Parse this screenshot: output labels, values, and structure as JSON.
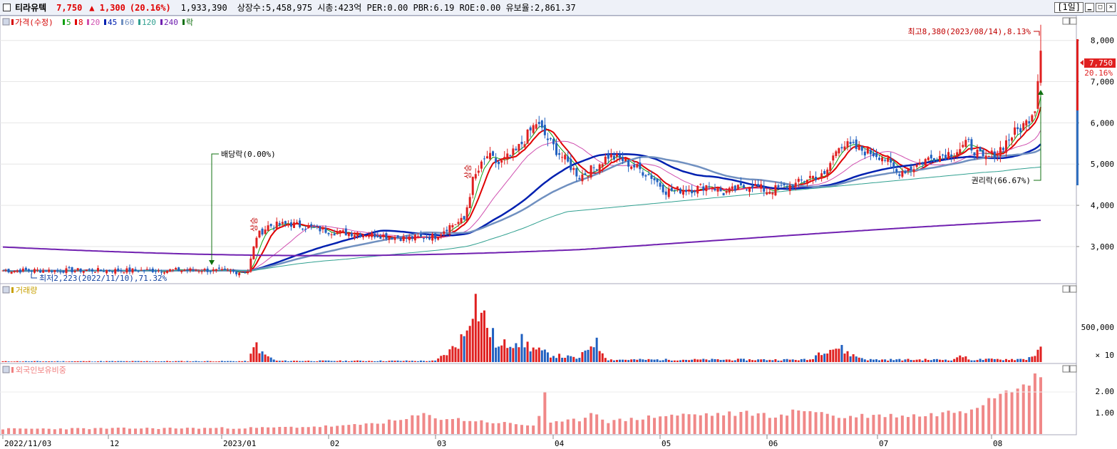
{
  "header": {
    "stock_name": "티라유텍",
    "price": "7,750",
    "change": "▲ 1,300",
    "change_pct": "(20.16%)",
    "volume": "1,933,390",
    "info": "상장수:5,458,975 시총:423억 PER:0.00 PBR:6.19 ROE:0.00 유보율:2,861.37",
    "period": "[1일]"
  },
  "price_panel": {
    "legend": [
      {
        "label": "가격(수정)",
        "color": "#d40000"
      },
      {
        "label": "5",
        "color": "#12a012"
      },
      {
        "label": "8",
        "color": "#e00000"
      },
      {
        "label": "20",
        "color": "#d050b0"
      },
      {
        "label": "45",
        "color": "#0020b0"
      },
      {
        "label": "60",
        "color": "#7090c0"
      },
      {
        "label": "120",
        "color": "#30a090"
      },
      {
        "label": "240",
        "color": "#7020b0"
      },
      {
        "label": "락",
        "color": "#107010"
      }
    ],
    "y_ticks": [
      "8,000",
      "7,000",
      "6,000",
      "5,000",
      "4,000",
      "3,000"
    ],
    "current_price_tag": "7,750",
    "current_pct_tag": "20.16%",
    "high_annotation": "최고8,380(2023/08/14),8.13%",
    "low_annotation": "최저2,223(2022/11/10),71.32%",
    "dividend_annotation": "배당락(0.00%)",
    "rights_annotation": "권리락(66.67%)",
    "signal_label": "상승"
  },
  "volume_panel": {
    "legend": "거래량",
    "legend_color": "#c8a000",
    "y_tick": "500,000",
    "unit": "× 10"
  },
  "foreign_panel": {
    "legend": "외국인보유비중",
    "legend_color": "#f08080",
    "y_ticks": [
      "2.00",
      "1.00"
    ]
  },
  "x_axis": [
    "2022/11/03",
    "12",
    "2023/01",
    "02",
    "03",
    "04",
    "05",
    "06",
    "07",
    "08"
  ],
  "chart_data": {
    "type": "candlestick",
    "title": "티라유텍",
    "y_range": [
      2100,
      8600
    ],
    "high": 8380,
    "low": 2223,
    "current": 7750,
    "ma_periods": [
      5,
      8,
      20,
      45,
      60,
      120,
      240
    ],
    "keyframes_price": [
      [
        0,
        2420
      ],
      [
        45,
        2420
      ],
      [
        70,
        2430
      ],
      [
        80,
        2380
      ],
      [
        85,
        2400
      ],
      [
        88,
        3250
      ],
      [
        92,
        3500
      ],
      [
        100,
        3550
      ],
      [
        115,
        3350
      ],
      [
        130,
        3280
      ],
      [
        140,
        3200
      ],
      [
        150,
        3250
      ],
      [
        155,
        3500
      ],
      [
        160,
        3650
      ],
      [
        163,
        4600
      ],
      [
        168,
        5200
      ],
      [
        172,
        5000
      ],
      [
        178,
        5300
      ],
      [
        185,
        6000
      ],
      [
        190,
        5500
      ],
      [
        195,
        5100
      ],
      [
        200,
        4700
      ],
      [
        205,
        4900
      ],
      [
        210,
        5200
      ],
      [
        215,
        5100
      ],
      [
        220,
        4900
      ],
      [
        225,
        4700
      ],
      [
        230,
        4350
      ],
      [
        240,
        4400
      ],
      [
        245,
        4500
      ],
      [
        250,
        4300
      ],
      [
        260,
        4500
      ],
      [
        265,
        4350
      ],
      [
        275,
        4500
      ],
      [
        280,
        4700
      ],
      [
        285,
        4700
      ],
      [
        290,
        5500
      ],
      [
        295,
        5400
      ],
      [
        300,
        5300
      ],
      [
        305,
        5200
      ],
      [
        310,
        4800
      ],
      [
        315,
        4900
      ],
      [
        320,
        5100
      ],
      [
        325,
        5200
      ],
      [
        330,
        5300
      ],
      [
        335,
        5500
      ],
      [
        340,
        5100
      ],
      [
        345,
        5300
      ],
      [
        350,
        5700
      ],
      [
        355,
        6000
      ],
      [
        358,
        6400
      ],
      [
        360,
        7750
      ]
    ],
    "keyframes_volume": [
      [
        0,
        12
      ],
      [
        85,
        15
      ],
      [
        88,
        300
      ],
      [
        90,
        140
      ],
      [
        95,
        20
      ],
      [
        150,
        20
      ],
      [
        155,
        180
      ],
      [
        160,
        440
      ],
      [
        163,
        1100
      ],
      [
        168,
        620
      ],
      [
        172,
        230
      ],
      [
        178,
        400
      ],
      [
        185,
        200
      ],
      [
        190,
        120
      ],
      [
        200,
        60
      ],
      [
        205,
        370
      ],
      [
        210,
        40
      ],
      [
        280,
        40
      ],
      [
        285,
        230
      ],
      [
        290,
        240
      ],
      [
        295,
        110
      ],
      [
        300,
        40
      ],
      [
        330,
        40
      ],
      [
        332,
        130
      ],
      [
        335,
        40
      ],
      [
        355,
        50
      ],
      [
        360,
        190
      ]
    ],
    "keyframes_foreign": [
      [
        0,
        0.25
      ],
      [
        90,
        0.3
      ],
      [
        120,
        0.4
      ],
      [
        140,
        0.7
      ],
      [
        145,
        0.95
      ],
      [
        150,
        0.8
      ],
      [
        185,
        0.4
      ],
      [
        188,
        2.0
      ],
      [
        190,
        0.5
      ],
      [
        200,
        0.7
      ],
      [
        205,
        1.1
      ],
      [
        210,
        0.6
      ],
      [
        230,
        0.9
      ],
      [
        260,
        1.0
      ],
      [
        270,
        0.85
      ],
      [
        275,
        1.1
      ],
      [
        280,
        1.2
      ],
      [
        290,
        0.8
      ],
      [
        300,
        0.9
      ],
      [
        320,
        0.9
      ],
      [
        335,
        1.2
      ],
      [
        340,
        1.6
      ],
      [
        345,
        2.0
      ],
      [
        350,
        2.4
      ],
      [
        355,
        2.7
      ],
      [
        360,
        2.7
      ]
    ]
  }
}
